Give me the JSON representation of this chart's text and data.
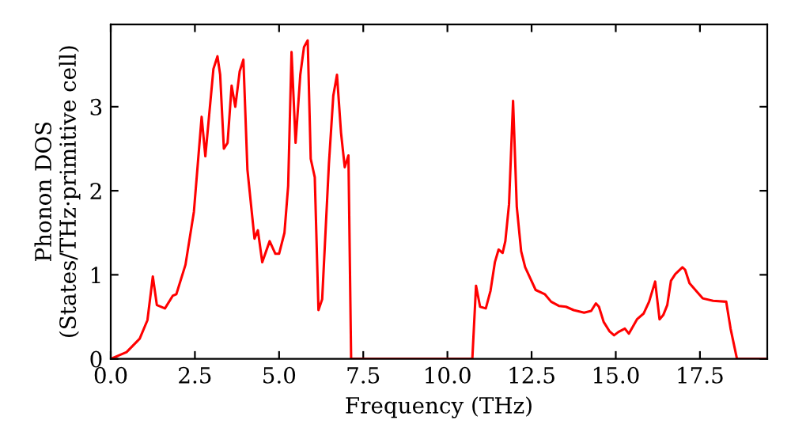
{
  "chart_data": {
    "type": "line",
    "xlabel": "Frequency (THz)",
    "ylabel": "Phonon DOS\n(States/THz·primitive cell)",
    "xlim": [
      0,
      19.5
    ],
    "ylim": [
      0,
      3.98
    ],
    "xticks": [
      {
        "value": 0,
        "label": "0.0"
      },
      {
        "value": 2.5,
        "label": "2.5"
      },
      {
        "value": 5,
        "label": "5.0"
      },
      {
        "value": 7.5,
        "label": "7.5"
      },
      {
        "value": 10,
        "label": "10.0"
      },
      {
        "value": 12.5,
        "label": "12.5"
      },
      {
        "value": 15,
        "label": "15.0"
      },
      {
        "value": 17.5,
        "label": "17.5"
      }
    ],
    "yticks": [
      0,
      1,
      2,
      3
    ],
    "grid": false,
    "marker": "none",
    "line_style": "solid",
    "series": [
      {
        "color": "#ff0000",
        "x": [
          0,
          0.47,
          0.86,
          1.09,
          1.25,
          1.37,
          1.61,
          1.84,
          1.95,
          2.22,
          2.47,
          2.7,
          2.81,
          3.05,
          3.17,
          3.25,
          3.36,
          3.47,
          3.59,
          3.7,
          3.83,
          3.94,
          4.06,
          4.27,
          4.37,
          4.5,
          4.72,
          4.89,
          5.0,
          5.16,
          5.27,
          5.37,
          5.49,
          5.63,
          5.74,
          5.85,
          5.94,
          6.06,
          6.17,
          6.28,
          6.48,
          6.61,
          6.72,
          6.84,
          6.95,
          7.06,
          7.14,
          10.74,
          10.85,
          10.97,
          11.14,
          11.28,
          11.41,
          11.52,
          11.64,
          11.72,
          11.83,
          11.95,
          12.06,
          12.19,
          12.31,
          12.47,
          12.62,
          12.89,
          13.08,
          13.31,
          13.52,
          13.75,
          14.06,
          14.27,
          14.41,
          14.5,
          14.64,
          14.81,
          14.95,
          15.08,
          15.27,
          15.39,
          15.63,
          15.83,
          15.99,
          16.17,
          16.3,
          16.41,
          16.53,
          16.64,
          16.77,
          16.98,
          17.06,
          17.19,
          17.43,
          17.58,
          17.89,
          18.28,
          18.41,
          18.6,
          19.45
        ],
        "values": [
          0,
          0.08,
          0.24,
          0.46,
          0.98,
          0.64,
          0.6,
          0.75,
          0.77,
          1.12,
          1.75,
          2.88,
          2.41,
          3.45,
          3.6,
          3.38,
          2.5,
          2.57,
          3.25,
          3.0,
          3.42,
          3.56,
          2.25,
          1.43,
          1.53,
          1.15,
          1.4,
          1.25,
          1.25,
          1.5,
          2.06,
          3.65,
          2.57,
          3.38,
          3.71,
          3.79,
          2.38,
          2.16,
          0.58,
          0.71,
          2.32,
          3.13,
          3.38,
          2.69,
          2.28,
          2.42,
          0,
          0,
          0.87,
          0.62,
          0.6,
          0.81,
          1.15,
          1.3,
          1.26,
          1.4,
          1.84,
          3.07,
          1.81,
          1.28,
          1.09,
          0.95,
          0.82,
          0.77,
          0.68,
          0.63,
          0.62,
          0.58,
          0.55,
          0.57,
          0.66,
          0.62,
          0.44,
          0.33,
          0.28,
          0.32,
          0.36,
          0.3,
          0.47,
          0.54,
          0.68,
          0.92,
          0.47,
          0.52,
          0.64,
          0.93,
          1.01,
          1.09,
          1.06,
          0.9,
          0.79,
          0.72,
          0.69,
          0.68,
          0.36,
          0,
          0
        ]
      }
    ]
  }
}
